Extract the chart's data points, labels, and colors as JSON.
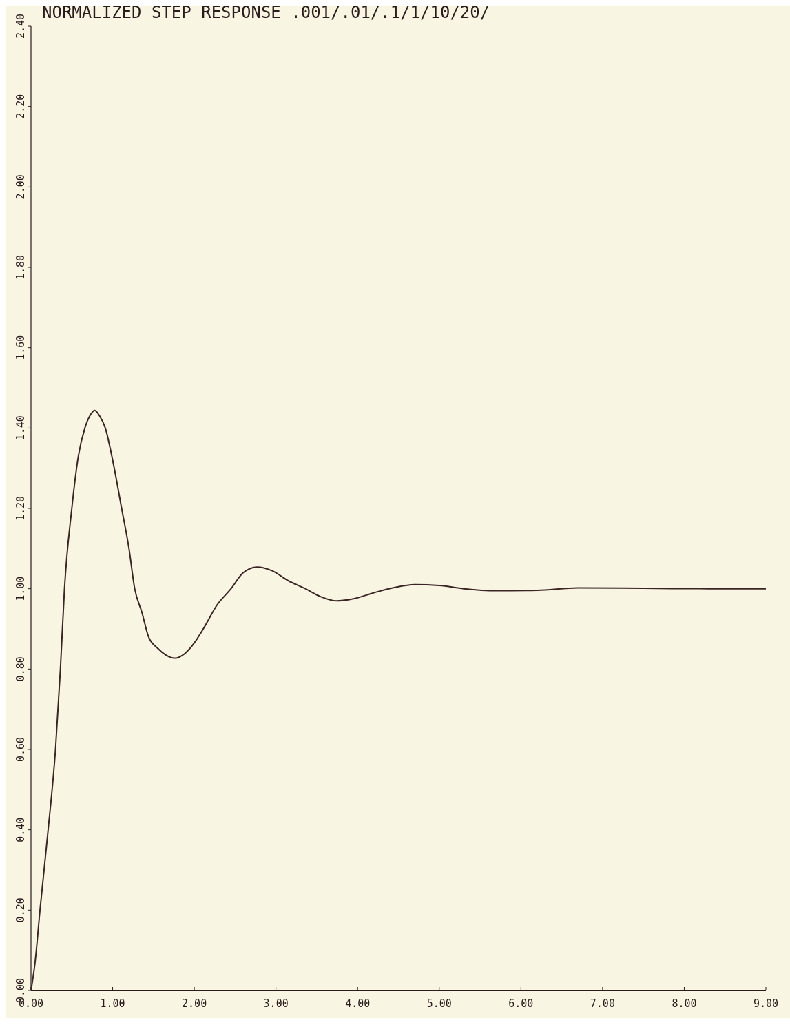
{
  "chart_data": {
    "type": "line",
    "title": "NORMALIZED STEP RESPONSE .001/.01/.1/1/10/20/",
    "x": [
      0,
      0.05,
      0.11,
      0.21,
      0.3,
      0.36,
      0.41,
      0.5,
      0.58,
      0.66,
      0.72,
      0.78,
      0.84,
      0.91,
      1.0,
      1.11,
      1.2,
      1.27,
      1.36,
      1.44,
      1.55,
      1.65,
      1.76,
      1.88,
      2.0,
      2.11,
      2.28,
      2.45,
      2.6,
      2.77,
      2.95,
      3.15,
      3.36,
      3.55,
      3.74,
      3.95,
      4.2,
      4.45,
      4.7,
      5.0,
      5.3,
      5.7,
      6.2,
      6.7,
      7.5,
      8.3,
      9.0
    ],
    "series": [
      {
        "color": "#3a2424",
        "values": [
          0,
          0.07,
          0.2,
          0.4,
          0.6,
          0.8,
          1.0,
          1.2,
          1.33,
          1.4,
          1.43,
          1.444,
          1.43,
          1.4,
          1.32,
          1.2,
          1.1,
          1.0,
          0.94,
          0.88,
          0.852,
          0.835,
          0.827,
          0.838,
          0.865,
          0.9,
          0.96,
          1.0,
          1.04,
          1.054,
          1.045,
          1.02,
          1.0,
          0.98,
          0.97,
          0.975,
          0.99,
          1.003,
          1.01,
          1.008,
          1.0,
          0.995,
          0.996,
          1.002,
          1.001,
          1.0,
          1.0
        ]
      }
    ],
    "xlim": [
      0,
      9
    ],
    "ylim": [
      0,
      2.4
    ],
    "xticks": [
      {
        "value": 0,
        "label": "0.00"
      },
      {
        "value": 1,
        "label": "1.00"
      },
      {
        "value": 2,
        "label": "2.00"
      },
      {
        "value": 3,
        "label": "3.00"
      },
      {
        "value": 4,
        "label": "4.00"
      },
      {
        "value": 5,
        "label": "5.00"
      },
      {
        "value": 6,
        "label": "6.00"
      },
      {
        "value": 7,
        "label": "7.00"
      },
      {
        "value": 8,
        "label": "8.00"
      },
      {
        "value": 9,
        "label": "9.00"
      }
    ],
    "yticks": [
      {
        "value": 0,
        "label": "0.00"
      },
      {
        "value": 0.2,
        "label": "0.20"
      },
      {
        "value": 0.4,
        "label": "0.40"
      },
      {
        "value": 0.6,
        "label": "0.60"
      },
      {
        "value": 0.8,
        "label": "0.80"
      },
      {
        "value": 1,
        "label": "1.00"
      },
      {
        "value": 1.2,
        "label": "1.20"
      },
      {
        "value": 1.4,
        "label": "1.40"
      },
      {
        "value": 1.6,
        "label": "1.60"
      },
      {
        "value": 1.8,
        "label": "1.80"
      },
      {
        "value": 2,
        "label": "2.00"
      },
      {
        "value": 2.2,
        "label": "2.20"
      },
      {
        "value": 2.4,
        "label": "2.40"
      }
    ],
    "grid": false,
    "marker": "none",
    "line_style": "solid"
  }
}
